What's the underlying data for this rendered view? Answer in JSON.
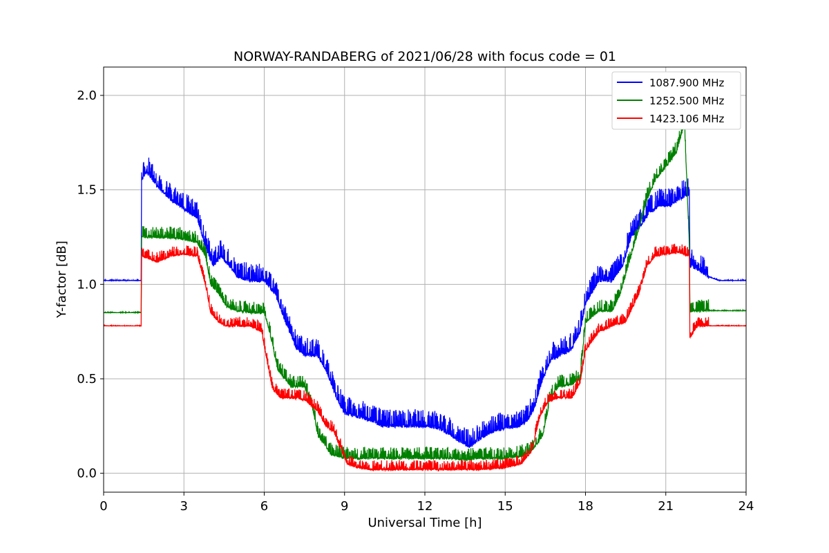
{
  "chart_data": {
    "type": "line",
    "title": "NORWAY-RANDABERG of 2021/06/28 with focus code = 01",
    "xlabel": "Universal Time [h]",
    "ylabel": "Y-factor [dB]",
    "xlim": [
      0,
      24
    ],
    "ylim": [
      -0.1,
      2.15
    ],
    "xticks": [
      0,
      3,
      6,
      9,
      12,
      15,
      18,
      21,
      24
    ],
    "xtick_labels": [
      "0",
      "3",
      "6",
      "9",
      "12",
      "15",
      "18",
      "21",
      "24"
    ],
    "yticks": [
      0.0,
      0.5,
      1.0,
      1.5,
      2.0
    ],
    "ytick_labels": [
      "0.0",
      "0.5",
      "1.0",
      "1.5",
      "2.0"
    ],
    "grid": true,
    "legend_position": "top-right",
    "series": [
      {
        "name": "1087.900 MHz",
        "color": "#0000ff",
        "noise": 0.09,
        "x": [
          0,
          1.4,
          1.42,
          1.6,
          2.0,
          2.5,
          3.0,
          3.5,
          3.8,
          4.1,
          4.4,
          4.8,
          5.0,
          5.5,
          6.0,
          6.4,
          6.8,
          7.2,
          7.5,
          8.0,
          8.3,
          8.7,
          9.0,
          9.5,
          10.0,
          10.4,
          10.8,
          11.5,
          12.0,
          12.5,
          13.0,
          13.4,
          13.7,
          14.0,
          14.5,
          15.0,
          15.5,
          15.8,
          16.1,
          16.4,
          16.7,
          17.0,
          17.5,
          17.8,
          18.0,
          18.5,
          19.0,
          19.4,
          19.7,
          20.0,
          20.4,
          20.8,
          21.2,
          21.5,
          21.88,
          21.9,
          22.2,
          22.6,
          23.0,
          24.0
        ],
        "y": [
          1.02,
          1.02,
          1.55,
          1.6,
          1.52,
          1.45,
          1.4,
          1.35,
          1.2,
          1.1,
          1.15,
          1.08,
          1.04,
          1.02,
          1.02,
          0.95,
          0.8,
          0.66,
          0.63,
          0.62,
          0.55,
          0.4,
          0.32,
          0.3,
          0.28,
          0.25,
          0.25,
          0.25,
          0.25,
          0.24,
          0.2,
          0.16,
          0.14,
          0.18,
          0.22,
          0.24,
          0.25,
          0.27,
          0.35,
          0.5,
          0.6,
          0.62,
          0.66,
          0.75,
          0.9,
          1.02,
          1.02,
          1.1,
          1.25,
          1.3,
          1.38,
          1.42,
          1.42,
          1.45,
          1.48,
          1.1,
          1.08,
          1.04,
          1.02,
          1.02
        ]
      },
      {
        "name": "1252.500 MHz",
        "color": "#008000",
        "noise": 0.06,
        "x": [
          0,
          1.4,
          1.42,
          2.0,
          3.0,
          3.5,
          3.8,
          4.0,
          4.3,
          4.6,
          5.0,
          5.5,
          6.0,
          6.2,
          6.5,
          7.0,
          7.5,
          7.8,
          8.0,
          8.5,
          9.0,
          9.5,
          10.0,
          11.0,
          12.0,
          13.0,
          13.5,
          14.0,
          15.0,
          15.6,
          16.0,
          16.4,
          16.7,
          17.0,
          17.5,
          17.8,
          18.0,
          18.5,
          19.0,
          19.3,
          19.6,
          20.0,
          20.3,
          20.6,
          21.0,
          21.4,
          21.7,
          21.88,
          21.9,
          22.2,
          23.0,
          23.2,
          23.3,
          24.0
        ],
        "y": [
          0.85,
          0.85,
          1.25,
          1.25,
          1.24,
          1.22,
          1.15,
          1.0,
          0.95,
          0.88,
          0.86,
          0.85,
          0.85,
          0.75,
          0.55,
          0.46,
          0.46,
          0.35,
          0.2,
          0.1,
          0.08,
          0.08,
          0.08,
          0.08,
          0.08,
          0.08,
          0.07,
          0.08,
          0.08,
          0.09,
          0.12,
          0.2,
          0.4,
          0.46,
          0.47,
          0.5,
          0.8,
          0.86,
          0.86,
          0.95,
          1.1,
          1.3,
          1.45,
          1.55,
          1.62,
          1.7,
          1.85,
          1.2,
          0.86,
          0.86,
          0.86,
          0.86,
          0.86,
          0.86
        ]
      },
      {
        "name": "1423.106 MHz",
        "color": "#ff0000",
        "noise": 0.05,
        "x": [
          0,
          1.4,
          1.42,
          2.0,
          2.5,
          3.0,
          3.5,
          3.8,
          4.0,
          4.3,
          4.6,
          5.0,
          5.5,
          5.9,
          6.1,
          6.3,
          6.6,
          7.0,
          7.5,
          8.0,
          8.3,
          8.6,
          8.8,
          9.1,
          9.5,
          10.0,
          11.0,
          12.0,
          13.0,
          14.0,
          15.0,
          15.6,
          16.0,
          16.3,
          16.6,
          17.0,
          17.5,
          17.8,
          18.0,
          18.5,
          19.0,
          19.5,
          20.0,
          20.3,
          20.6,
          21.0,
          21.5,
          21.88,
          21.9,
          22.2,
          23.0,
          24.0
        ],
        "y": [
          0.78,
          0.78,
          1.15,
          1.12,
          1.15,
          1.16,
          1.15,
          1.0,
          0.85,
          0.8,
          0.78,
          0.78,
          0.78,
          0.75,
          0.6,
          0.45,
          0.4,
          0.4,
          0.39,
          0.33,
          0.25,
          0.22,
          0.15,
          0.05,
          0.03,
          0.02,
          0.02,
          0.02,
          0.02,
          0.02,
          0.03,
          0.05,
          0.12,
          0.3,
          0.38,
          0.4,
          0.4,
          0.48,
          0.65,
          0.75,
          0.78,
          0.8,
          0.95,
          1.1,
          1.15,
          1.16,
          1.17,
          1.15,
          0.72,
          0.78,
          0.78,
          0.78
        ]
      }
    ]
  }
}
